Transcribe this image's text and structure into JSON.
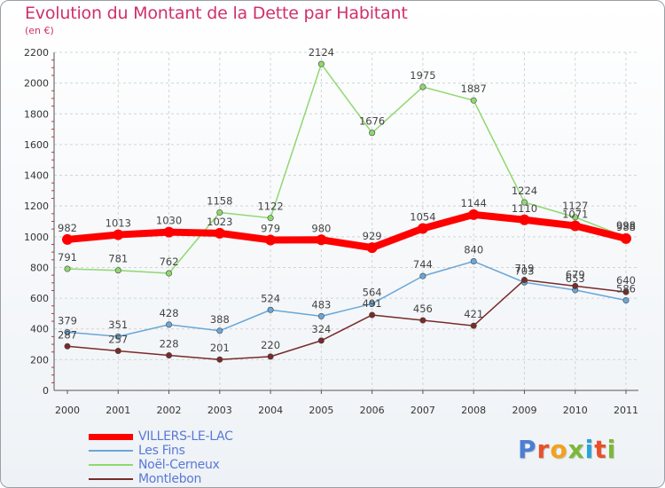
{
  "brand": {
    "letters": [
      "P",
      "r",
      "o",
      "x",
      "i",
      "t",
      "i"
    ],
    "colors": [
      "#4a7fd4",
      "#e8502a",
      "#f2a21e",
      "#7cb839",
      "#2aa3d8",
      "#e8502a",
      "#7cb839"
    ]
  },
  "chart_data": {
    "type": "line",
    "title": "Evolution du Montant de la Dette par Habitant",
    "subtitle": "(en €)",
    "xlabel": "",
    "ylabel": "",
    "ylim": [
      0,
      2200
    ],
    "yticks": [
      "0",
      "200",
      "400",
      "600",
      "800",
      "1000",
      "1200",
      "1400",
      "1600",
      "1800",
      "2000",
      "2200"
    ],
    "grid": true,
    "legend_position": "bottom-left",
    "categories": [
      "2000",
      "2001",
      "2002",
      "2003",
      "2004",
      "2005",
      "2006",
      "2007",
      "2008",
      "2009",
      "2010",
      "2011"
    ],
    "series": [
      {
        "name": "VILLERS-LE-LAC",
        "color": "#ff0000",
        "values": [
          982,
          1013,
          1030,
          1023,
          979,
          980,
          929,
          1054,
          1144,
          1110,
          1071,
          988
        ],
        "labels": [
          "982",
          "1013",
          "1030",
          "1023",
          "979",
          "980",
          "929",
          "1054",
          "1144",
          "1110",
          "1071",
          "988"
        ]
      },
      {
        "name": "Les Fins",
        "color": "#6aa6d8",
        "values": [
          379,
          351,
          428,
          388,
          524,
          483,
          564,
          744,
          840,
          703,
          653,
          586
        ],
        "labels": [
          "379",
          "351",
          "428",
          "388",
          "524",
          "483",
          "564",
          "744",
          "840",
          "703",
          "653",
          "586"
        ]
      },
      {
        "name": "Noël-Cerneux",
        "color": "#8fd870",
        "values": [
          791,
          781,
          762,
          1158,
          1122,
          2124,
          1676,
          1975,
          1887,
          1224,
          1127,
          998
        ],
        "labels": [
          "791",
          "781",
          "762",
          "1158",
          "1122",
          "2124",
          "1676",
          "1975",
          "1887",
          "1224",
          "1127",
          "998"
        ]
      },
      {
        "name": "Montlebon",
        "color": "#7a2a2a",
        "values": [
          287,
          257,
          228,
          201,
          220,
          324,
          491,
          456,
          421,
          719,
          679,
          640
        ],
        "labels": [
          "287",
          "257",
          "228",
          "201",
          "220",
          "324",
          "491",
          "456",
          "421",
          "719",
          "679",
          "640"
        ]
      }
    ]
  }
}
